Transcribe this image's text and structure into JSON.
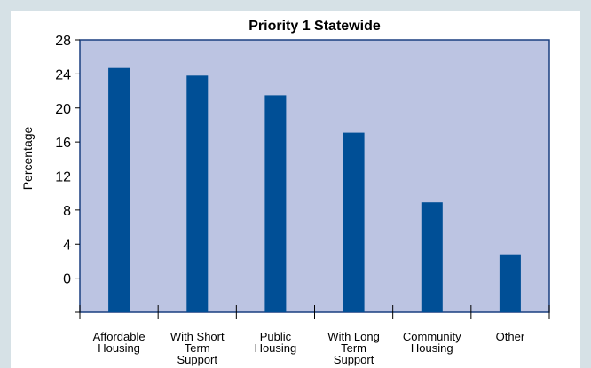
{
  "chart_data": {
    "type": "bar",
    "title": "Priority 1 Statewide",
    "xlabel": "",
    "ylabel": "Percentage",
    "ylim": [
      -4,
      28
    ],
    "yticks": [
      0,
      4,
      8,
      12,
      16,
      20,
      24,
      28
    ],
    "grid": false,
    "legend": "none",
    "categories": [
      [
        "Affordable",
        "Housing"
      ],
      [
        "With Short",
        "Term",
        "Support"
      ],
      [
        "Public",
        "Housing"
      ],
      [
        "With Long",
        "Term",
        "Support"
      ],
      [
        "Community",
        "Housing"
      ],
      [
        "Other"
      ]
    ],
    "values": [
      24.7,
      23.8,
      21.5,
      17.1,
      8.9,
      2.7
    ],
    "colors": {
      "plot_background": "#bcc4e2",
      "bar": "#004f96",
      "frame": "#d6e1e6"
    }
  }
}
